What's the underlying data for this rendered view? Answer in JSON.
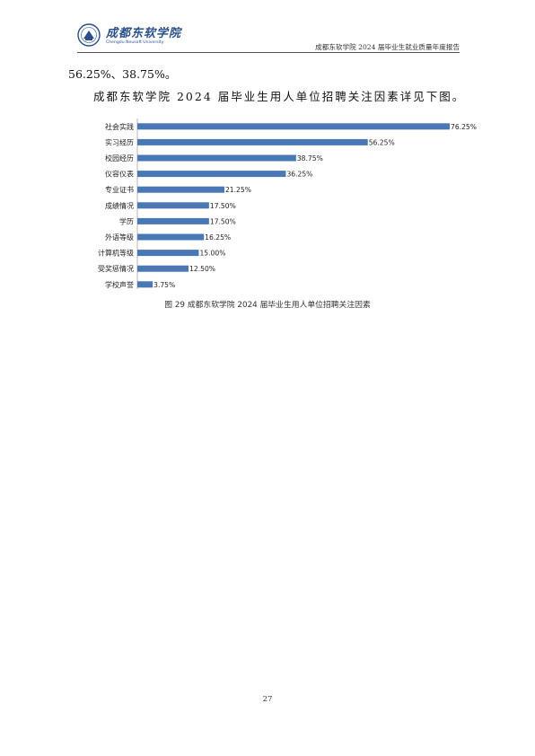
{
  "header": {
    "logo_name": "成都东软学院",
    "logo_subtitle": "Chengdu Neusoft University",
    "doc_title": "成都东软学院 2024 届毕业生就业质量年度报告"
  },
  "body": {
    "para_continuation": "56.25%、38.75%。",
    "para_intro": "成都东软学院 2024 届毕业生用人单位招聘关注因素详见下图。"
  },
  "chart_data": {
    "type": "bar",
    "orientation": "horizontal",
    "categories": [
      "社会实践",
      "实习经历",
      "校园经历",
      "仪容仪表",
      "专业证书",
      "成绩情况",
      "学历",
      "外语等级",
      "计算机等级",
      "受奖惩情况",
      "学校声誉"
    ],
    "values": [
      76.25,
      56.25,
      38.75,
      36.25,
      21.25,
      17.5,
      17.5,
      16.25,
      15.0,
      12.5,
      3.75
    ],
    "value_labels": [
      "76.25%",
      "56.25%",
      "38.75%",
      "36.25%",
      "21.25%",
      "17.50%",
      "17.50%",
      "16.25%",
      "15.00%",
      "12.50%",
      "3.75%"
    ],
    "bar_color": "#4a78b5",
    "xlim": [
      0,
      76.25
    ],
    "grid": false,
    "title": "",
    "xlabel": "",
    "ylabel": ""
  },
  "caption": "图 29 成都东软学院 2024 届毕业生用人单位招聘关注因素",
  "page_number": "27"
}
